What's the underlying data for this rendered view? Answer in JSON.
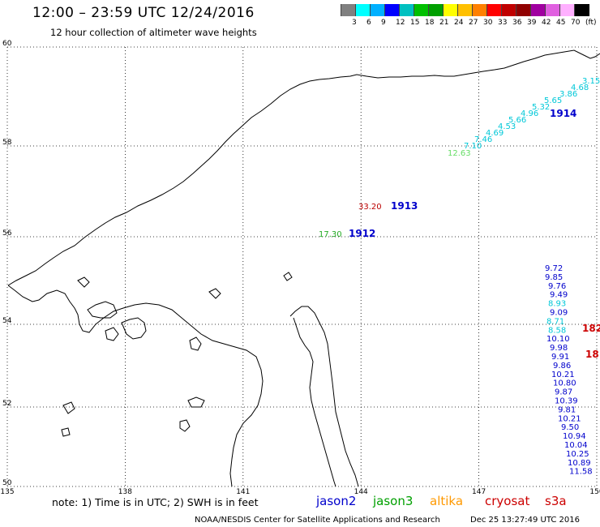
{
  "title": "12:00 – 23:59 UTC 12/24/2016",
  "subtitle": "12 hour collection of altimeter wave heights",
  "legend": {
    "colors": [
      "#808080",
      "#00ffff",
      "#00b0ff",
      "#0000ff",
      "#00c0c0",
      "#00c000",
      "#00a000",
      "#ffff00",
      "#ffc000",
      "#ff8000",
      "#ff0000",
      "#c00000",
      "#900000",
      "#a000a0",
      "#e060e0",
      "#ffb0ff",
      "#000000"
    ],
    "labels": [
      "3",
      "6",
      "9",
      "12",
      "15",
      "18",
      "21",
      "24",
      "27",
      "30",
      "33",
      "36",
      "39",
      "42",
      "45",
      "70",
      "(ft)"
    ]
  },
  "map": {
    "lat_labels": [
      "60",
      "58",
      "56",
      "54",
      "52",
      "50"
    ],
    "lon_labels": [
      "135",
      "138",
      "141",
      "144",
      "147",
      "150"
    ],
    "lat_values": [
      60,
      58,
      56,
      54,
      52,
      50
    ],
    "lon_values": [
      135,
      138,
      141,
      144,
      147,
      150
    ]
  },
  "colors": {
    "jason2": "#0000cc",
    "jason3": "#00a000",
    "altika": "#ff9900",
    "cryosat": "#cc0000",
    "s3a": "#cc0000",
    "cyan": "#00c8d8",
    "lightgreen": "#66dd66",
    "darkred": "#bb0000",
    "green": "#22aa22"
  },
  "tracks": {
    "t1914": {
      "label": "1914",
      "label_lat": 58.7,
      "label_lon": 148.9,
      "values": [
        "12.63",
        "7.10",
        "7.46",
        "4.69",
        "4.53",
        "5.66",
        "4.96",
        "5.32",
        "5.65",
        "3.86",
        "4.68",
        "3.15"
      ],
      "lons": [
        146.2,
        146.7,
        147.0,
        147.3,
        147.6,
        147.9,
        148.2,
        148.5,
        148.8,
        149.1,
        149.4,
        149.7
      ],
      "lats": [
        58.15,
        58.35,
        58.55,
        58.75,
        58.95,
        59.15,
        59.35,
        59.55,
        59.75,
        59.95,
        60.15,
        60.35
      ]
    },
    "t1913": {
      "label": "1913",
      "values": [
        "33.20"
      ],
      "lat": 56.7,
      "lon": 143.9
    },
    "t1912": {
      "label": "1912",
      "values": [
        "17.30"
      ],
      "lat": 56.0,
      "lon": 143.0
    },
    "t18": {
      "values": [
        "9.72",
        "9.85",
        "9.76",
        "9.49",
        "8.93",
        "9.09",
        "8.71",
        "8.58",
        "10.10",
        "9.98",
        "9.91",
        "9.86",
        "10.21",
        "10.80",
        "9.87",
        "10.39",
        "9.81",
        "10.21",
        "9.50",
        "10.94",
        "10.04",
        "10.25",
        "10.89",
        "11.58"
      ],
      "labels": [
        "182",
        "18"
      ]
    }
  },
  "footer": {
    "note": "note:  1) Time is in UTC;  2) SWH is in feet",
    "jason2": "jason2",
    "jason3": "jason3",
    "altika": "altika",
    "cryosat": "cryosat",
    "s3a": "s3a",
    "credit": "NOAA/NESDIS Center for Satellite Applications and Research",
    "timestamp": "Dec 25 13:27:49 UTC 2016"
  }
}
